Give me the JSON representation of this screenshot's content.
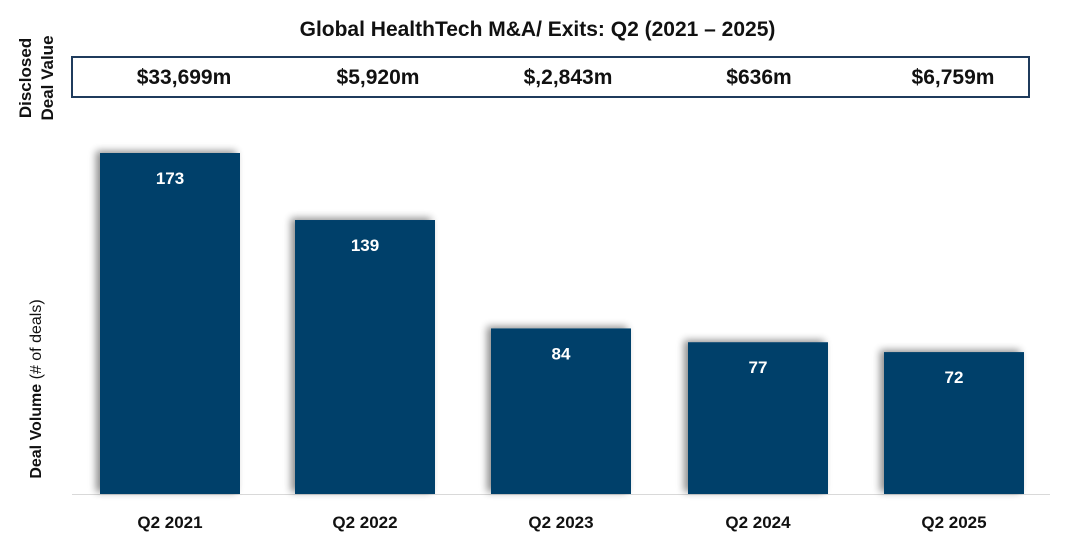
{
  "chart_data": {
    "type": "bar",
    "title": "Global HealthTech M&A/ Exits: Q2 (2021 – 2025)",
    "categories": [
      "Q2 2021",
      "Q2 2022",
      "Q2 2023",
      "Q2 2024",
      "Q2 2025"
    ],
    "values": [
      173,
      139,
      84,
      77,
      72
    ],
    "data_labels": [
      "173",
      "139",
      "84",
      "77",
      "72"
    ],
    "disclosed_deal_values": [
      "$33,699m",
      "$5,920m",
      "$,2,843m",
      "$636m",
      "$6,759m"
    ],
    "top_label": "Disclosed Deal Value",
    "ylabel_bold": "Deal Volume",
    "ylabel_light": " (# of deals)",
    "xlabel": "",
    "ylim": [
      0,
      180
    ],
    "grid": false,
    "bar_color": "#003f6b",
    "label_color": "#ffffff"
  }
}
